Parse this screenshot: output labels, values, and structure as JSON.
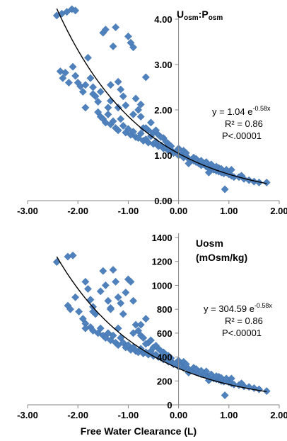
{
  "chart_data": [
    {
      "type": "scatter",
      "title": "",
      "ylabel_main": "U",
      "ylabel_sub1": "osm",
      "ylabel_colon": ":P",
      "ylabel_sub2": "osm",
      "xlabel": "",
      "xlim": [
        -3.0,
        2.0
      ],
      "ylim": [
        0.0,
        4.0
      ],
      "xticks": [
        "-3.00",
        "-2.00",
        "-1.00",
        "0.00",
        "1.00",
        "2.00"
      ],
      "yticks": [
        "0.00",
        "1.00",
        "2.00",
        "3.00",
        "4.00"
      ],
      "grid": false,
      "marker_color": "#4F81BD",
      "curve_color": "#000000",
      "fit": {
        "a": 1.04,
        "b": -0.58,
        "x_range": [
          -2.42,
          1.75
        ]
      },
      "annotation": {
        "eq_prefix": "y = 1.04 e",
        "eq_exp": "-0.58x",
        "r2": "R² = 0.86",
        "p": "P<.00001"
      },
      "points": [
        [
          -2.42,
          4.08
        ],
        [
          -2.32,
          4.12
        ],
        [
          -2.22,
          4.16
        ],
        [
          -2.12,
          4.22
        ],
        [
          -2.05,
          4.19
        ],
        [
          -2.35,
          2.85
        ],
        [
          -2.3,
          2.7
        ],
        [
          -2.25,
          2.82
        ],
        [
          -2.18,
          2.6
        ],
        [
          -2.1,
          2.95
        ],
        [
          -2.05,
          2.75
        ],
        [
          -2.0,
          2.6
        ],
        [
          -1.95,
          2.52
        ],
        [
          -1.9,
          2.4
        ],
        [
          -1.85,
          2.55
        ],
        [
          -1.8,
          3.15
        ],
        [
          -1.75,
          2.7
        ],
        [
          -1.7,
          2.35
        ],
        [
          -1.65,
          2.3
        ],
        [
          -1.6,
          2.18
        ],
        [
          -1.55,
          2.4
        ],
        [
          -1.5,
          3.7
        ],
        [
          -1.45,
          3.77
        ],
        [
          -1.4,
          2.05
        ],
        [
          -1.35,
          2.2
        ],
        [
          -1.3,
          3.4
        ],
        [
          -1.25,
          3.82
        ],
        [
          -1.2,
          2.62
        ],
        [
          -1.15,
          2.45
        ],
        [
          -1.1,
          2.3
        ],
        [
          -1.05,
          2.1
        ],
        [
          -1.0,
          3.62
        ],
        [
          -0.95,
          3.48
        ],
        [
          -0.9,
          3.38
        ],
        [
          -0.85,
          2.25
        ],
        [
          -0.8,
          2.0
        ],
        [
          -0.75,
          1.85
        ],
        [
          -0.7,
          1.6
        ],
        [
          -0.65,
          2.72
        ],
        [
          -0.6,
          1.55
        ],
        [
          -1.6,
          1.95
        ],
        [
          -1.55,
          1.85
        ],
        [
          -1.5,
          1.8
        ],
        [
          -1.45,
          1.72
        ],
        [
          -1.4,
          1.9
        ],
        [
          -1.35,
          1.68
        ],
        [
          -1.3,
          1.75
        ],
        [
          -1.25,
          1.6
        ],
        [
          -1.2,
          1.55
        ],
        [
          -1.15,
          1.8
        ],
        [
          -1.1,
          1.65
        ],
        [
          -1.05,
          1.5
        ],
        [
          -1.0,
          1.58
        ],
        [
          -0.95,
          1.45
        ],
        [
          -0.9,
          1.52
        ],
        [
          -0.85,
          1.4
        ],
        [
          -0.8,
          1.38
        ],
        [
          -0.75,
          1.48
        ],
        [
          -0.7,
          1.32
        ],
        [
          -0.65,
          1.35
        ],
        [
          -0.6,
          1.28
        ],
        [
          -0.55,
          1.42
        ],
        [
          -0.5,
          1.25
        ],
        [
          -0.45,
          1.3
        ],
        [
          -0.4,
          1.2
        ],
        [
          -0.35,
          1.22
        ],
        [
          -0.3,
          1.15
        ],
        [
          -0.25,
          1.18
        ],
        [
          -0.2,
          1.1
        ],
        [
          -0.15,
          1.12
        ],
        [
          -0.1,
          1.05
        ],
        [
          -0.05,
          1.08
        ],
        [
          0.0,
          1.0
        ],
        [
          0.05,
          1.02
        ],
        [
          0.1,
          0.95
        ],
        [
          0.15,
          0.98
        ],
        [
          0.2,
          0.92
        ],
        [
          0.25,
          0.9
        ],
        [
          0.3,
          0.88
        ],
        [
          0.35,
          0.85
        ],
        [
          0.4,
          0.82
        ],
        [
          0.45,
          0.78
        ],
        [
          0.5,
          0.8
        ],
        [
          0.55,
          0.75
        ],
        [
          0.6,
          0.72
        ],
        [
          0.65,
          0.7
        ],
        [
          0.7,
          0.68
        ],
        [
          0.75,
          0.66
        ],
        [
          0.8,
          0.64
        ],
        [
          0.85,
          0.62
        ],
        [
          0.9,
          0.6
        ],
        [
          0.95,
          0.62
        ],
        [
          1.0,
          0.58
        ],
        [
          1.05,
          0.55
        ],
        [
          1.1,
          0.52
        ],
        [
          1.2,
          0.52
        ],
        [
          1.3,
          0.48
        ],
        [
          1.4,
          0.45
        ],
        [
          1.5,
          0.42
        ],
        [
          1.6,
          0.4
        ],
        [
          1.75,
          0.4
        ],
        [
          0.92,
          0.25
        ],
        [
          -1.7,
          2.5
        ],
        [
          -1.2,
          2.05
        ],
        [
          -0.9,
          1.9
        ],
        [
          -0.55,
          1.72
        ],
        [
          -0.4,
          1.45
        ],
        [
          -0.2,
          1.25
        ],
        [
          0.1,
          1.1
        ],
        [
          0.3,
          0.95
        ],
        [
          0.55,
          0.85
        ],
        [
          0.8,
          0.72
        ],
        [
          1.05,
          0.68
        ],
        [
          -1.85,
          2.05
        ],
        [
          -1.35,
          2.55
        ],
        [
          -0.75,
          2.12
        ],
        [
          -0.3,
          1.38
        ],
        [
          0.2,
          0.82
        ],
        [
          0.6,
          0.62
        ],
        [
          1.25,
          0.55
        ],
        [
          -0.65,
          1.6
        ],
        [
          -0.5,
          1.5
        ],
        [
          -0.45,
          1.55
        ],
        [
          -0.35,
          1.4
        ],
        [
          -0.25,
          1.3
        ],
        [
          -0.15,
          1.2
        ],
        [
          0.0,
          1.15
        ],
        [
          0.15,
          1.05
        ],
        [
          0.35,
          0.92
        ],
        [
          0.45,
          0.88
        ],
        [
          0.65,
          0.8
        ],
        [
          0.75,
          0.75
        ],
        [
          0.85,
          0.7
        ],
        [
          0.95,
          0.68
        ]
      ]
    },
    {
      "type": "scatter",
      "title": "",
      "ylabel_line1": "Uosm",
      "ylabel_line2": "(mOsm/kg)",
      "xlabel": "Free Water Clearance (L)",
      "xlim": [
        -3.0,
        2.0
      ],
      "ylim": [
        0,
        1400
      ],
      "xticks": [
        "-3.00",
        "-2.00",
        "-1.00",
        "0.00",
        "1.00",
        "2.00"
      ],
      "yticks": [
        "0",
        "200",
        "400",
        "600",
        "800",
        "1000",
        "1200",
        "1400"
      ],
      "grid": false,
      "marker_color": "#4F81BD",
      "curve_color": "#000000",
      "fit": {
        "a": 304.59,
        "b": -0.58,
        "x_range": [
          -2.42,
          1.75
        ]
      },
      "annotation": {
        "eq_prefix": "y = 304.59 e",
        "eq_exp": "-0.58x",
        "r2": "R² = 0.86",
        "p": "P<.00001"
      },
      "points": [
        [
          -2.42,
          1195
        ],
        [
          -2.2,
          1240
        ],
        [
          -2.1,
          1250
        ],
        [
          -2.2,
          830
        ],
        [
          -2.15,
          800
        ],
        [
          -2.05,
          900
        ],
        [
          -1.98,
          780
        ],
        [
          -1.9,
          720
        ],
        [
          -1.85,
          1030
        ],
        [
          -1.8,
          970
        ],
        [
          -1.75,
          880
        ],
        [
          -1.7,
          820
        ],
        [
          -1.65,
          760
        ],
        [
          -1.55,
          950
        ],
        [
          -1.5,
          1120
        ],
        [
          -1.45,
          1000
        ],
        [
          -1.4,
          870
        ],
        [
          -1.35,
          810
        ],
        [
          -1.3,
          1130
        ],
        [
          -1.25,
          1030
        ],
        [
          -1.2,
          900
        ],
        [
          -1.15,
          850
        ],
        [
          -1.1,
          760
        ],
        [
          -1.05,
          940
        ],
        [
          -1.0,
          1050
        ],
        [
          -0.95,
          1030
        ],
        [
          -0.9,
          870
        ],
        [
          -0.85,
          670
        ],
        [
          -0.8,
          620
        ],
        [
          -0.75,
          580
        ],
        [
          -0.7,
          560
        ],
        [
          -0.65,
          720
        ],
        [
          -0.6,
          520
        ],
        [
          -1.85,
          680
        ],
        [
          -1.75,
          650
        ],
        [
          -1.7,
          620
        ],
        [
          -1.6,
          600
        ],
        [
          -1.55,
          640
        ],
        [
          -1.5,
          580
        ],
        [
          -1.45,
          560
        ],
        [
          -1.4,
          600
        ],
        [
          -1.35,
          540
        ],
        [
          -1.3,
          580
        ],
        [
          -1.25,
          520
        ],
        [
          -1.2,
          500
        ],
        [
          -1.15,
          560
        ],
        [
          -1.1,
          520
        ],
        [
          -1.05,
          480
        ],
        [
          -1.0,
          500
        ],
        [
          -0.95,
          460
        ],
        [
          -0.9,
          480
        ],
        [
          -0.85,
          450
        ],
        [
          -0.8,
          440
        ],
        [
          -0.75,
          470
        ],
        [
          -0.7,
          430
        ],
        [
          -0.65,
          440
        ],
        [
          -0.6,
          420
        ],
        [
          -0.55,
          450
        ],
        [
          -0.5,
          410
        ],
        [
          -0.45,
          420
        ],
        [
          -0.4,
          400
        ],
        [
          -0.35,
          395
        ],
        [
          -0.3,
          380
        ],
        [
          -0.25,
          385
        ],
        [
          -0.2,
          360
        ],
        [
          -0.15,
          365
        ],
        [
          -0.1,
          340
        ],
        [
          -0.05,
          350
        ],
        [
          0.0,
          320
        ],
        [
          0.05,
          330
        ],
        [
          0.1,
          310
        ],
        [
          0.15,
          315
        ],
        [
          0.2,
          300
        ],
        [
          0.25,
          290
        ],
        [
          0.3,
          285
        ],
        [
          0.35,
          275
        ],
        [
          0.4,
          265
        ],
        [
          0.45,
          255
        ],
        [
          0.5,
          260
        ],
        [
          0.55,
          245
        ],
        [
          0.6,
          235
        ],
        [
          0.65,
          225
        ],
        [
          0.7,
          220
        ],
        [
          0.75,
          215
        ],
        [
          0.8,
          210
        ],
        [
          0.85,
          200
        ],
        [
          0.9,
          195
        ],
        [
          0.95,
          200
        ],
        [
          1.0,
          190
        ],
        [
          1.05,
          180
        ],
        [
          1.1,
          170
        ],
        [
          1.2,
          165
        ],
        [
          1.3,
          155
        ],
        [
          1.4,
          150
        ],
        [
          1.5,
          140
        ],
        [
          1.6,
          130
        ],
        [
          1.75,
          115
        ],
        [
          0.92,
          80
        ],
        [
          -1.7,
          780
        ],
        [
          -1.2,
          640
        ],
        [
          -0.9,
          600
        ],
        [
          -0.55,
          540
        ],
        [
          -0.4,
          470
        ],
        [
          -0.2,
          410
        ],
        [
          0.1,
          360
        ],
        [
          0.3,
          310
        ],
        [
          0.55,
          280
        ],
        [
          0.8,
          235
        ],
        [
          1.05,
          220
        ],
        [
          -1.85,
          640
        ],
        [
          -1.35,
          800
        ],
        [
          -0.75,
          670
        ],
        [
          -0.3,
          440
        ],
        [
          0.2,
          270
        ],
        [
          0.6,
          205
        ],
        [
          1.25,
          180
        ],
        [
          -0.65,
          510
        ],
        [
          -0.5,
          480
        ],
        [
          -0.45,
          495
        ],
        [
          -0.35,
          450
        ],
        [
          -0.25,
          420
        ],
        [
          -0.15,
          390
        ],
        [
          0.0,
          370
        ],
        [
          0.15,
          340
        ],
        [
          0.35,
          300
        ],
        [
          0.45,
          285
        ],
        [
          0.65,
          255
        ],
        [
          0.75,
          240
        ],
        [
          0.85,
          225
        ],
        [
          0.95,
          220
        ]
      ]
    }
  ]
}
